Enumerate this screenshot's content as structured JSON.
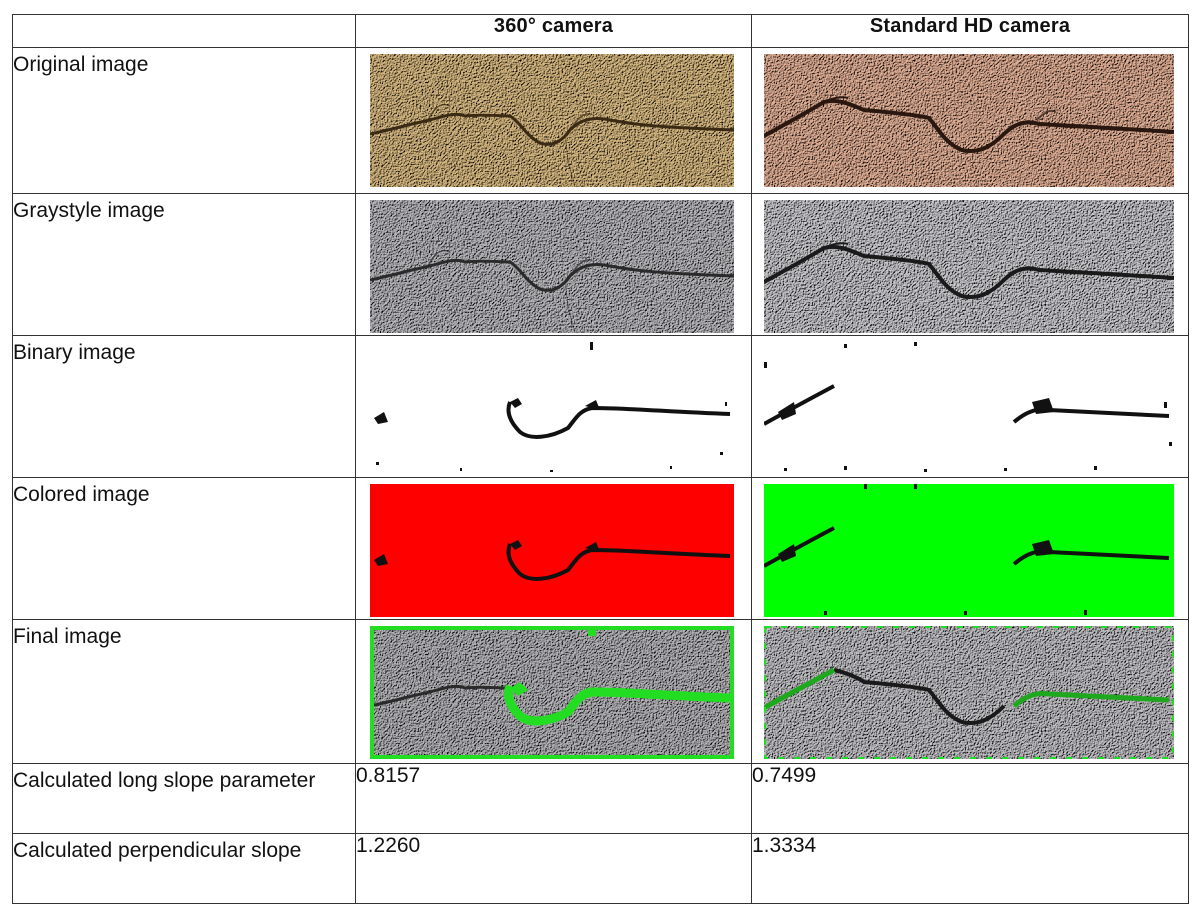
{
  "table": {
    "headers": [
      "",
      "360° camera",
      "Standard HD camera"
    ],
    "rows": [
      {
        "label": "Original image",
        "type": "image",
        "images": [
          "original-360",
          "original-hd"
        ]
      },
      {
        "label": "Graystyle image",
        "type": "image",
        "images": [
          "grayscale-360",
          "grayscale-hd"
        ]
      },
      {
        "label": "Binary image",
        "type": "image",
        "images": [
          "binary-360",
          "binary-hd"
        ]
      },
      {
        "label": "Colored image",
        "type": "image",
        "images": [
          "colored-360",
          "colored-hd"
        ]
      },
      {
        "label": "Final image",
        "type": "image",
        "images": [
          "final-360",
          "final-hd"
        ]
      },
      {
        "label": "Calculated long slope parameter",
        "type": "value",
        "values": [
          "0.8157",
          "0.7499"
        ]
      },
      {
        "label": "Calculated perpendicular slope",
        "type": "value",
        "values": [
          "1.2260",
          "1.3334"
        ]
      }
    ]
  },
  "colors": {
    "original_360": "#d2b47e",
    "original_hd": "#dcab92",
    "grayscale": "#b4b4b8",
    "binary_bg": "#ffffff",
    "colored_360": "#ff0000",
    "colored_hd": "#00ff00",
    "final_overlay": "#22dd22",
    "crack": "#1a1a1a"
  }
}
